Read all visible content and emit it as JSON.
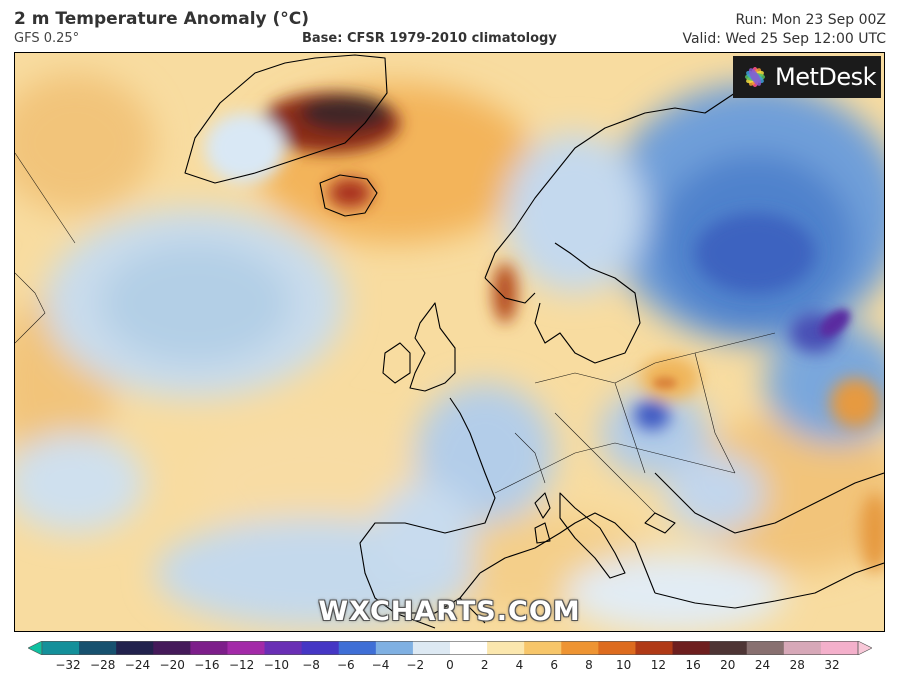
{
  "header": {
    "title": "2 m Temperature Anomaly (°C)",
    "model": "GFS 0.25°",
    "base": "Base: CFSR 1979-2010 climatology",
    "run": "Run: Mon 23 Sep 00Z",
    "valid": "Valid: Wed 25 Sep 12:00 UTC"
  },
  "logo": {
    "text": "MetDesk",
    "icon": "metdesk-flower-icon"
  },
  "watermark": "WXCHARTS.COM",
  "colorbar": {
    "ticks": [
      "−32",
      "−28",
      "−24",
      "−20",
      "−16",
      "−12",
      "−10",
      "−8",
      "−6",
      "−4",
      "−2",
      "0",
      "2",
      "4",
      "6",
      "8",
      "10",
      "12",
      "16",
      "20",
      "24",
      "28",
      "32"
    ],
    "colors": [
      "#10c0a0",
      "#14909a",
      "#17516f",
      "#22224d",
      "#451a5a",
      "#7d1e8a",
      "#a32aa8",
      "#6a2fb5",
      "#4536c4",
      "#3f6fd6",
      "#7fb0e2",
      "#dde9f3",
      "#ffffff",
      "#fbe7ae",
      "#f7c66a",
      "#ee9432",
      "#dd6b1e",
      "#b03a16",
      "#6e1f1f",
      "#4e3535",
      "#887070",
      "#d7a8b8",
      "#f4b0cb",
      "#f8c8d8"
    ]
  }
}
